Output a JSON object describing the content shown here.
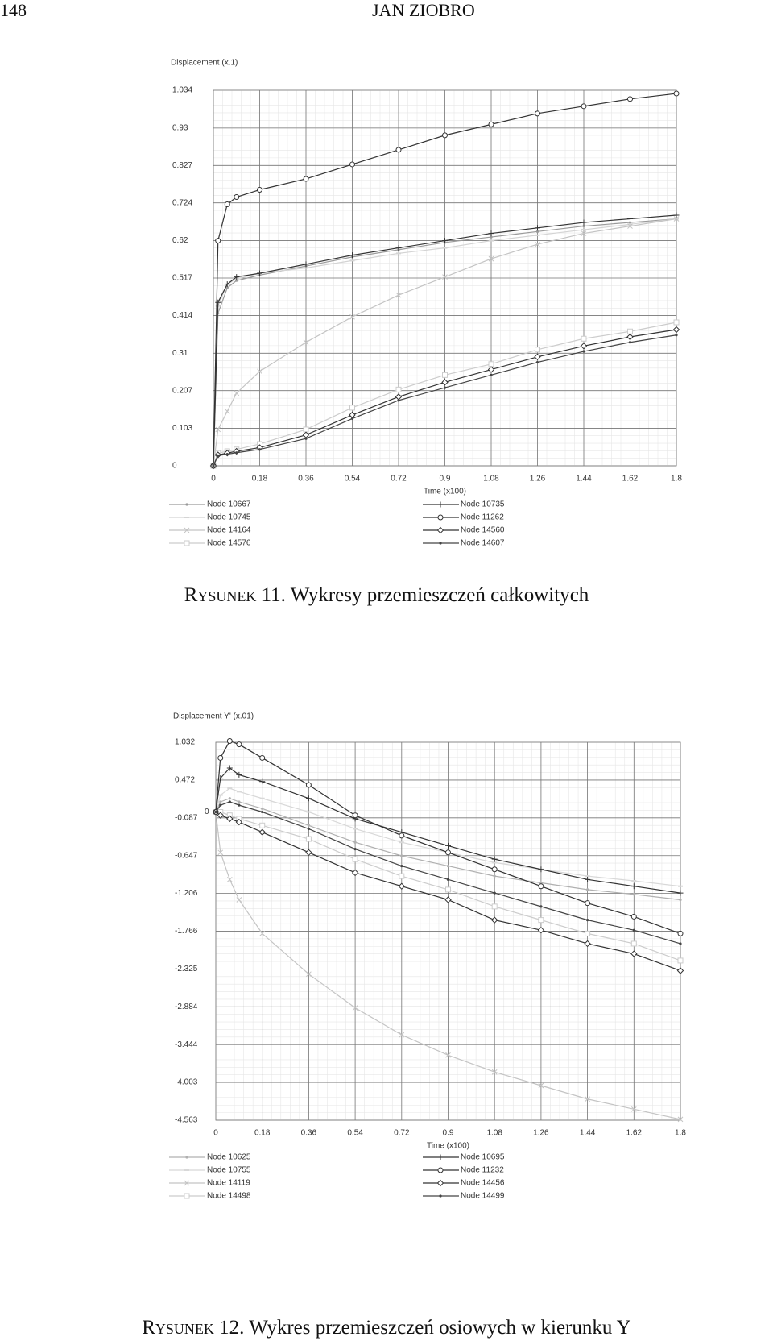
{
  "header": {
    "page_number": "148",
    "running_title": "JAN ZIOBRO"
  },
  "chart_data": [
    {
      "type": "line",
      "y_label": "Displacement (x.1)",
      "x_label": "Time (x100)",
      "caption_label": "Rysunek 11.",
      "caption": "Wykresy przemieszczeń całkowitych",
      "x": [
        0,
        0.018,
        0.054,
        0.09,
        0.18,
        0.36,
        0.54,
        0.72,
        0.9,
        1.08,
        1.26,
        1.44,
        1.62,
        1.8
      ],
      "xlim": [
        0,
        1.8
      ],
      "xticks": [
        0,
        0.18,
        0.36,
        0.54,
        0.72,
        0.9,
        1.08,
        1.26,
        1.44,
        1.62,
        1.8
      ],
      "ylim": [
        0,
        1.034
      ],
      "yticks": [
        0,
        0.103,
        0.207,
        0.31,
        0.414,
        0.517,
        0.62,
        0.724,
        0.827,
        0.93,
        1.034
      ],
      "grid": true,
      "series": [
        {
          "name": "Node 10667",
          "color": "#9a9a9a",
          "marker": "dot",
          "values": [
            0,
            0.42,
            0.49,
            0.51,
            0.525,
            0.55,
            0.575,
            0.595,
            0.615,
            0.63,
            0.645,
            0.66,
            0.67,
            0.68
          ]
        },
        {
          "name": "Node 10745",
          "color": "#d4d4d4",
          "marker": "dash",
          "values": [
            0,
            0.44,
            0.5,
            0.515,
            0.53,
            0.545,
            0.565,
            0.585,
            0.6,
            0.62,
            0.635,
            0.65,
            0.665,
            0.68
          ]
        },
        {
          "name": "Node 14164",
          "color": "#c4c4c4",
          "marker": "x",
          "values": [
            0,
            0.1,
            0.15,
            0.2,
            0.26,
            0.34,
            0.41,
            0.47,
            0.52,
            0.57,
            0.61,
            0.64,
            0.66,
            0.68
          ]
        },
        {
          "name": "Node 14576",
          "color": "#cccccc",
          "marker": "square",
          "values": [
            0,
            0.035,
            0.04,
            0.045,
            0.06,
            0.1,
            0.16,
            0.21,
            0.25,
            0.28,
            0.32,
            0.35,
            0.37,
            0.395
          ]
        },
        {
          "name": "Node 10735",
          "color": "#333333",
          "marker": "plus",
          "values": [
            0,
            0.45,
            0.5,
            0.52,
            0.53,
            0.555,
            0.58,
            0.6,
            0.62,
            0.64,
            0.655,
            0.67,
            0.68,
            0.69
          ]
        },
        {
          "name": "Node 11262",
          "color": "#333333",
          "marker": "circle",
          "values": [
            0,
            0.62,
            0.72,
            0.74,
            0.76,
            0.79,
            0.83,
            0.87,
            0.91,
            0.94,
            0.97,
            0.99,
            1.01,
            1.025
          ]
        },
        {
          "name": "Node 14560",
          "color": "#333333",
          "marker": "diamond",
          "values": [
            0,
            0.03,
            0.035,
            0.04,
            0.05,
            0.085,
            0.14,
            0.19,
            0.23,
            0.265,
            0.3,
            0.33,
            0.355,
            0.375
          ]
        },
        {
          "name": "Node 14607",
          "color": "#444444",
          "marker": "dot",
          "values": [
            0,
            0.028,
            0.032,
            0.036,
            0.045,
            0.075,
            0.13,
            0.18,
            0.215,
            0.25,
            0.285,
            0.315,
            0.34,
            0.36
          ]
        }
      ]
    },
    {
      "type": "line",
      "y_label": "Displacement Y' (x.01)",
      "x_label": "Time (x100)",
      "caption_label": "Rysunek 12.",
      "caption": "Wykres przemieszczeń osiowych w kierunku Y",
      "x": [
        0,
        0.018,
        0.054,
        0.09,
        0.18,
        0.36,
        0.54,
        0.72,
        0.9,
        1.08,
        1.26,
        1.44,
        1.62,
        1.8
      ],
      "xlim": [
        0,
        1.8
      ],
      "xticks": [
        0,
        0.18,
        0.36,
        0.54,
        0.72,
        0.9,
        1.08,
        1.26,
        1.44,
        1.62,
        1.8
      ],
      "ylim": [
        -4.563,
        1.032
      ],
      "yticks": [
        1.032,
        0.472,
        -0.087,
        -0.647,
        -1.206,
        -1.766,
        -2.325,
        -2.884,
        -3.444,
        -4.003,
        -4.563
      ],
      "origin": 0,
      "grid": true,
      "series": [
        {
          "name": "Node 10625",
          "color": "#b0b0b0",
          "marker": "dot",
          "values": [
            0,
            0.15,
            0.2,
            0.15,
            0.05,
            -0.2,
            -0.45,
            -0.65,
            -0.8,
            -0.95,
            -1.05,
            -1.15,
            -1.22,
            -1.3
          ]
        },
        {
          "name": "Node 10755",
          "color": "#d8d8d8",
          "marker": "dash",
          "values": [
            0,
            0.25,
            0.35,
            0.3,
            0.2,
            0,
            -0.25,
            -0.45,
            -0.6,
            -0.75,
            -0.85,
            -0.95,
            -1.02,
            -1.1
          ]
        },
        {
          "name": "Node 14119",
          "color": "#c4c4c4",
          "marker": "x",
          "values": [
            0,
            -0.6,
            -1.0,
            -1.3,
            -1.8,
            -2.4,
            -2.9,
            -3.3,
            -3.6,
            -3.85,
            -4.05,
            -4.25,
            -4.4,
            -4.55
          ]
        },
        {
          "name": "Node 14498",
          "color": "#cccccc",
          "marker": "square",
          "values": [
            0,
            0,
            -0.05,
            -0.1,
            -0.2,
            -0.4,
            -0.7,
            -0.95,
            -1.15,
            -1.4,
            -1.6,
            -1.8,
            -1.95,
            -2.2
          ]
        },
        {
          "name": "Node 10695",
          "color": "#333333",
          "marker": "plus",
          "values": [
            0,
            0.5,
            0.65,
            0.55,
            0.45,
            0.2,
            -0.1,
            -0.3,
            -0.5,
            -0.7,
            -0.85,
            -1.0,
            -1.1,
            -1.2
          ]
        },
        {
          "name": "Node 11232",
          "color": "#333333",
          "marker": "circle",
          "values": [
            0,
            0.8,
            1.05,
            1.0,
            0.8,
            0.4,
            -0.05,
            -0.35,
            -0.6,
            -0.85,
            -1.1,
            -1.35,
            -1.55,
            -1.8
          ]
        },
        {
          "name": "Node 14456",
          "color": "#333333",
          "marker": "diamond",
          "values": [
            0,
            -0.05,
            -0.1,
            -0.15,
            -0.3,
            -0.6,
            -0.9,
            -1.1,
            -1.3,
            -1.6,
            -1.75,
            -1.95,
            -2.1,
            -2.35
          ]
        },
        {
          "name": "Node 14499",
          "color": "#444444",
          "marker": "dot",
          "values": [
            0,
            0.1,
            0.15,
            0.1,
            0,
            -0.25,
            -0.55,
            -0.8,
            -1.0,
            -1.2,
            -1.4,
            -1.6,
            -1.75,
            -1.95
          ]
        }
      ]
    }
  ]
}
